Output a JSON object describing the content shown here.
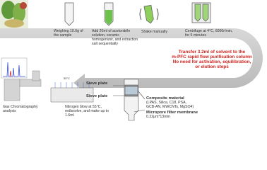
{
  "steps": {
    "weighing": [
      "Weighing 10.0g of",
      "the sample"
    ],
    "add": [
      "Add 20ml of acetonitrile",
      "solution, ceramic",
      "homogenizer, and extraction",
      "salt sequentially"
    ],
    "shake": [
      "Shake manually"
    ],
    "centrifuge": [
      "Centrifuge at 4°C, 6000r/min,",
      "for 5 minutes"
    ],
    "transfer": [
      "Transfer 3.2ml of solvent to the",
      "m-PFC rapid flow purification column",
      "No need for activation, equilibration,",
      "or elution steps"
    ],
    "nitrogen": [
      "Nitrogen blow at 55°C,",
      "redissolve, and make up to",
      "1.6ml"
    ],
    "gc": [
      "Gas Chromatography",
      "analysis"
    ]
  },
  "column": {
    "sieve_top": "Sieve plate",
    "sieve_bottom": "Sieve plate",
    "composite_title": "Composite material",
    "composite_items": [
      "(LPAS, Silica, C18, PSA,",
      "GCB-AN, MWCNTs, MgSO4)"
    ],
    "membrane_title": "Micropore filter membrane",
    "membrane_size": "0.22μm*13mm"
  },
  "heater_label": "55°C"
}
